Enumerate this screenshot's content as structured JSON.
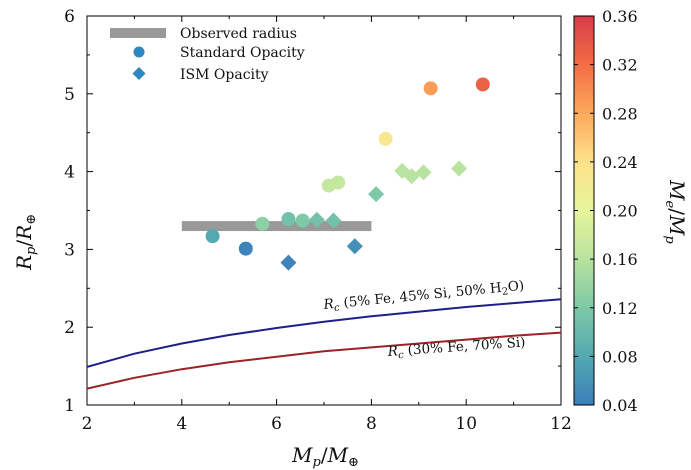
{
  "chart_data": {
    "type": "scatter",
    "xlabel": "M_p/M_⊕",
    "ylabel": "R_p/R_⊕",
    "xlim": [
      2,
      12
    ],
    "ylim": [
      1,
      6
    ],
    "x_ticks": [
      "2",
      "4",
      "6",
      "8",
      "10",
      "12"
    ],
    "y_ticks": [
      "1",
      "2",
      "3",
      "4",
      "5",
      "6"
    ],
    "legend": {
      "placement": "top-left",
      "entries": [
        {
          "label": "Observed radius",
          "marker": "band"
        },
        {
          "label": "Standard Opacity",
          "marker": "circle"
        },
        {
          "label": "ISM Opacity",
          "marker": "diamond"
        }
      ]
    },
    "colorbar": {
      "label": "M_e/M_p",
      "range": [
        0.04,
        0.36
      ],
      "ticks": [
        "0.04",
        "0.08",
        "0.12",
        "0.16",
        "0.20",
        "0.24",
        "0.28",
        "0.32",
        "0.36"
      ],
      "colormap": "Spectral_r"
    },
    "observed_radius": {
      "x": [
        4,
        8
      ],
      "y": 3.3
    },
    "series": [
      {
        "name": "Standard Opacity",
        "marker": "circle",
        "points": [
          {
            "x": 4.65,
            "y": 3.17,
            "c": 0.08
          },
          {
            "x": 5.35,
            "y": 3.01,
            "c": 0.045
          },
          {
            "x": 5.7,
            "y": 3.33,
            "c": 0.13
          },
          {
            "x": 6.25,
            "y": 3.39,
            "c": 0.11
          },
          {
            "x": 6.55,
            "y": 3.37,
            "c": 0.12
          },
          {
            "x": 7.1,
            "y": 3.82,
            "c": 0.17
          },
          {
            "x": 7.3,
            "y": 3.86,
            "c": 0.17
          },
          {
            "x": 8.3,
            "y": 4.42,
            "c": 0.23
          },
          {
            "x": 9.25,
            "y": 5.07,
            "c": 0.29
          },
          {
            "x": 10.35,
            "y": 5.12,
            "c": 0.33
          }
        ]
      },
      {
        "name": "ISM Opacity",
        "marker": "diamond",
        "points": [
          {
            "x": 6.25,
            "y": 2.83,
            "c": 0.045
          },
          {
            "x": 6.85,
            "y": 3.38,
            "c": 0.11
          },
          {
            "x": 7.2,
            "y": 3.37,
            "c": 0.11
          },
          {
            "x": 7.65,
            "y": 3.04,
            "c": 0.055
          },
          {
            "x": 8.1,
            "y": 3.71,
            "c": 0.12
          },
          {
            "x": 8.65,
            "y": 4.01,
            "c": 0.16
          },
          {
            "x": 8.85,
            "y": 3.94,
            "c": 0.16
          },
          {
            "x": 9.1,
            "y": 3.99,
            "c": 0.16
          },
          {
            "x": 9.85,
            "y": 4.04,
            "c": 0.16
          }
        ]
      }
    ],
    "curves": [
      {
        "label": "R_c (5% Fe, 45% Si, 50% H₂O)",
        "color": "#1f1f8c",
        "x": [
          2,
          3,
          4,
          5,
          6,
          7,
          8,
          9,
          10,
          11,
          12
        ],
        "y": [
          1.49,
          1.66,
          1.79,
          1.9,
          1.99,
          2.07,
          2.14,
          2.2,
          2.26,
          2.31,
          2.36
        ]
      },
      {
        "label": "R_c (30% Fe, 70% Si)",
        "color": "#9b2226",
        "x": [
          2,
          3,
          4,
          5,
          6,
          7,
          8,
          9,
          10,
          11,
          12
        ],
        "y": [
          1.21,
          1.35,
          1.46,
          1.55,
          1.62,
          1.69,
          1.74,
          1.79,
          1.84,
          1.89,
          1.93
        ]
      }
    ]
  }
}
